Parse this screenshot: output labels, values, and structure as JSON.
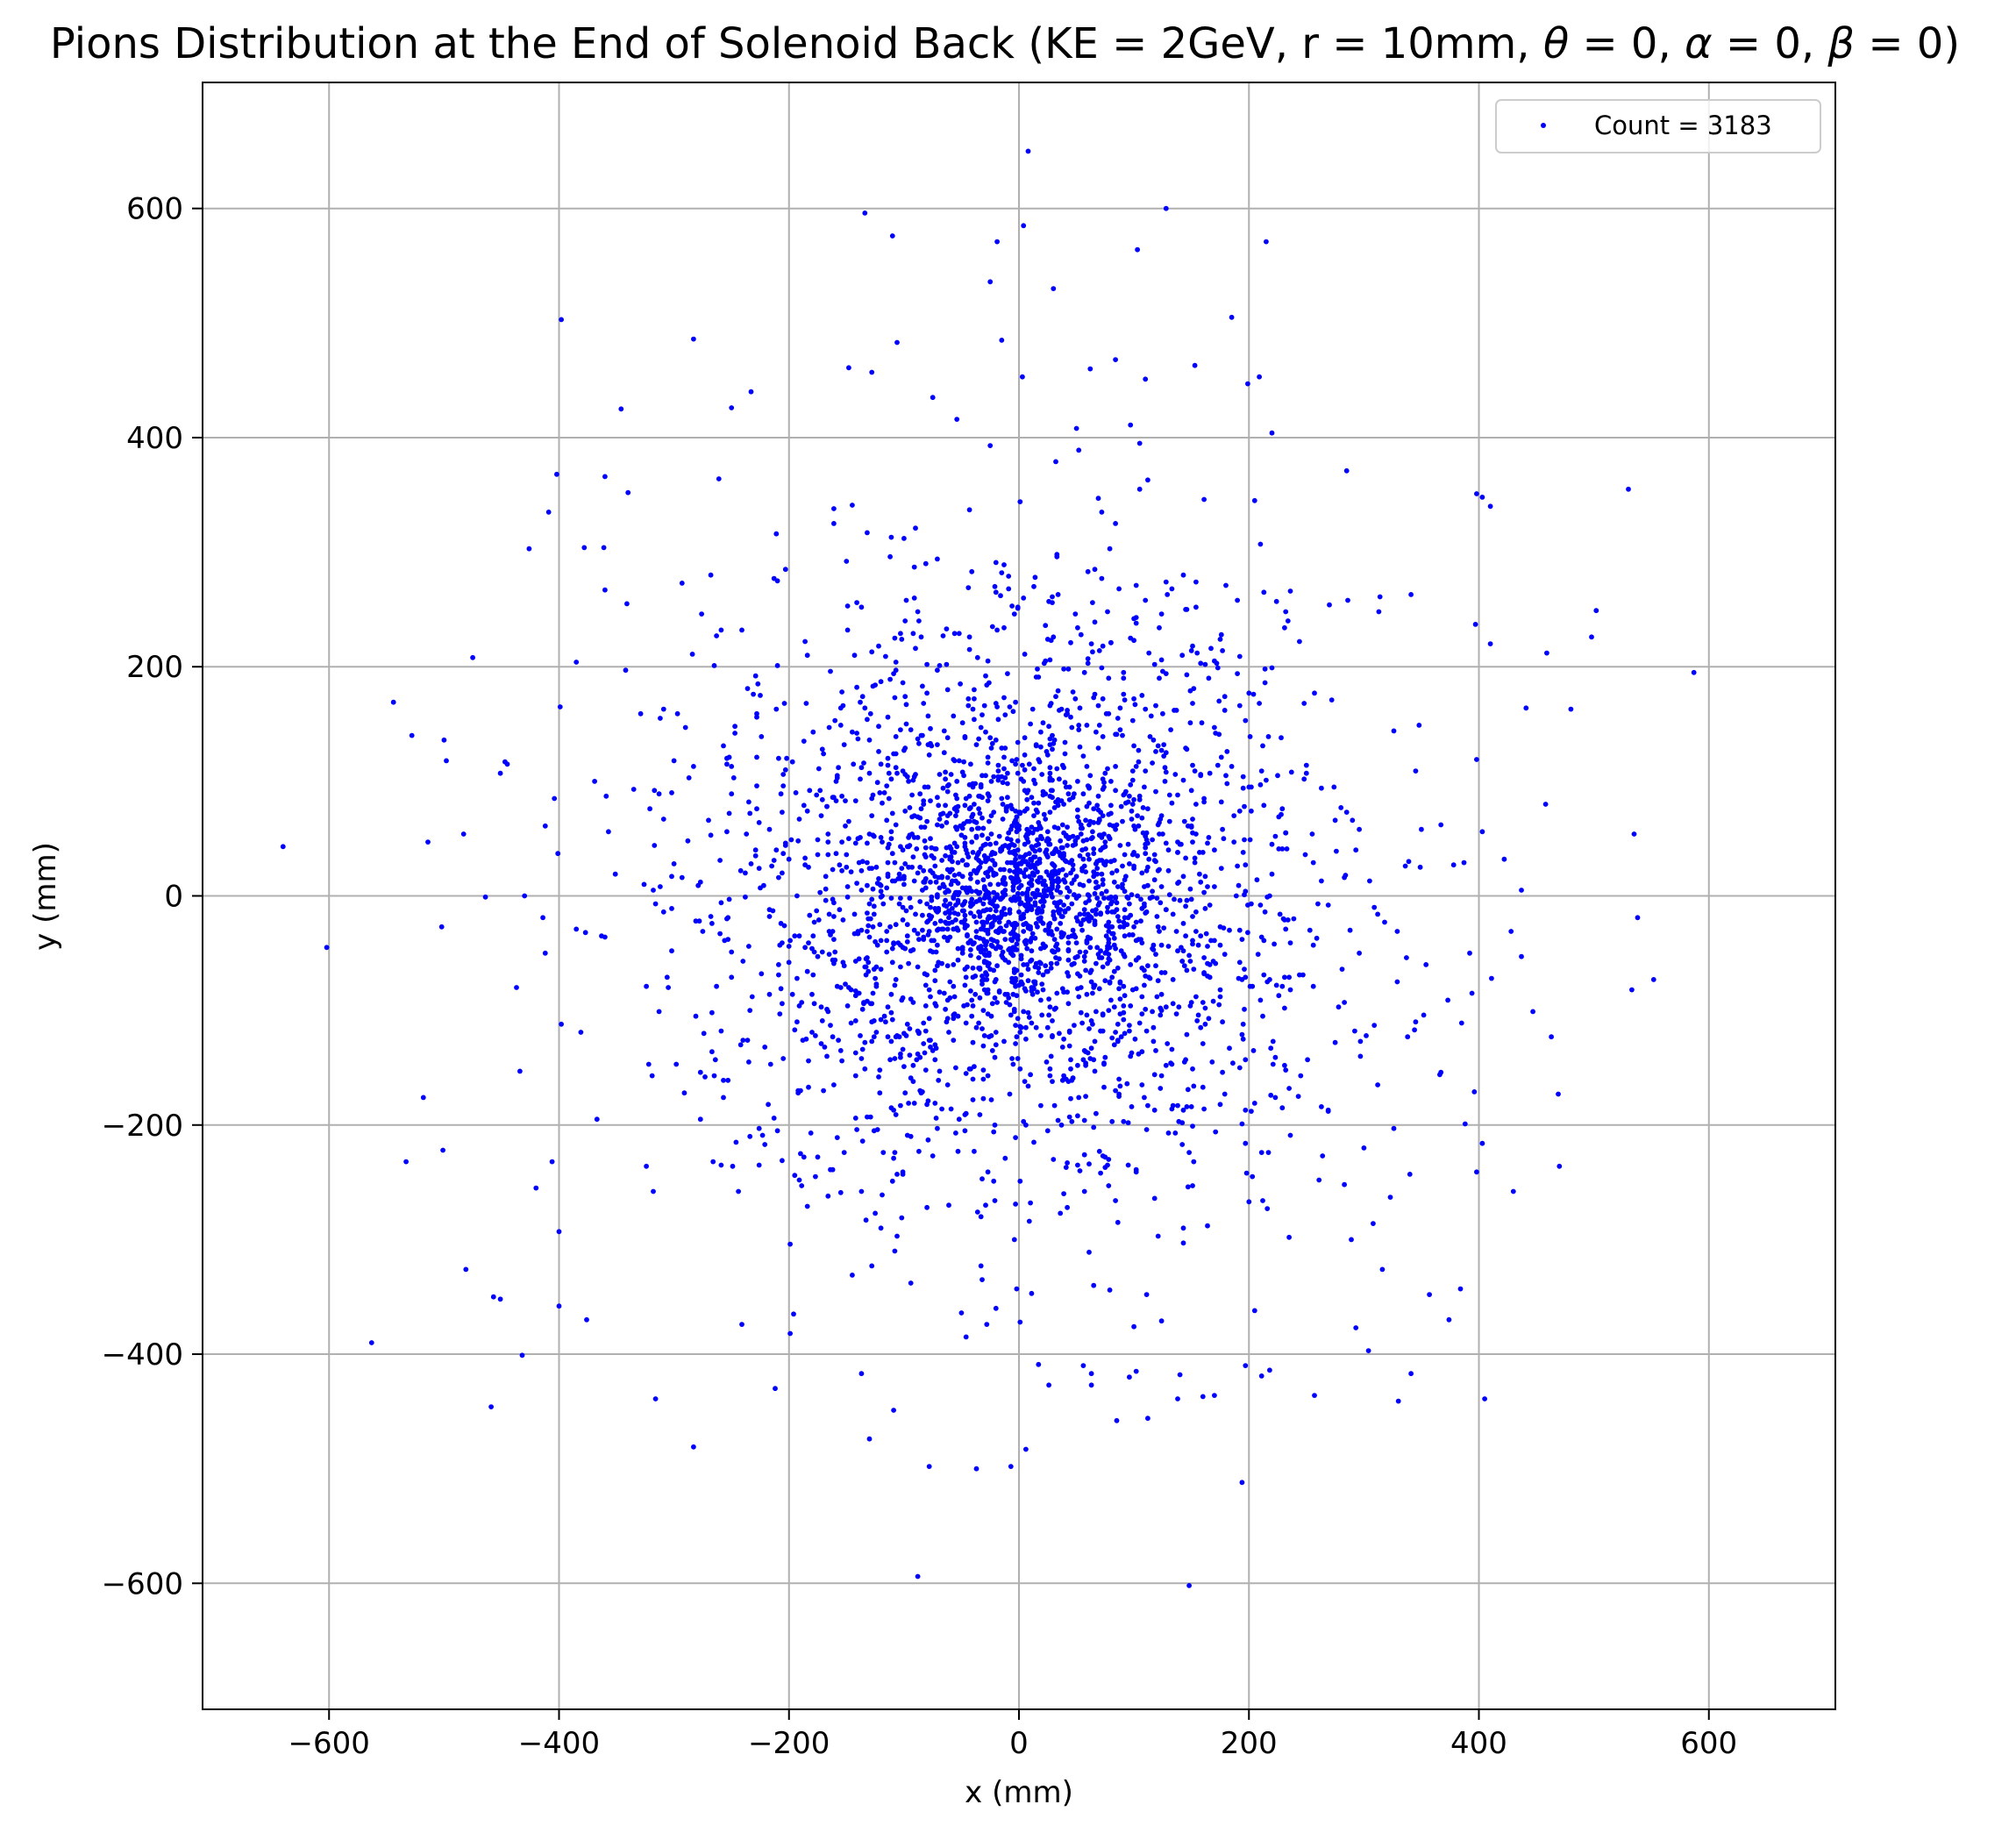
{
  "chart_data": {
    "type": "scatter",
    "title": "Pions Distribution at the End of Solenoid Back (KE = 2GeV, r = 10mm, θ = 0, α = 0, β = 0)",
    "title_parts": {
      "prefix": "Pions Distribution at the End of Solenoid Back (KE = 2GeV, r = 10mm, ",
      "theta": "θ",
      "alpha": "α",
      "beta": "β",
      "eq_zero": " = 0",
      "separator": ", ",
      "close": ")"
    },
    "xlabel": "x (mm)",
    "ylabel": "y (mm)",
    "xlim": [
      -710,
      710
    ],
    "ylim": [
      -710,
      710
    ],
    "xticks": [
      -600,
      -400,
      -200,
      0,
      200,
      400,
      600
    ],
    "yticks": [
      -600,
      -400,
      -200,
      0,
      200,
      400,
      600
    ],
    "xtick_labels": [
      "−600",
      "−400",
      "−200",
      "0",
      "200",
      "400",
      "600"
    ],
    "ytick_labels": [
      "−600",
      "−400",
      "−200",
      "0",
      "200",
      "400",
      "600"
    ],
    "grid": true,
    "legend": {
      "label": "Count = 3183",
      "position": "top-right"
    },
    "series_color": "#0000ff",
    "point_count": 3183,
    "outliers": [
      [
        8,
        650
      ],
      [
        -134,
        596
      ],
      [
        128,
        600
      ],
      [
        -110,
        576
      ],
      [
        4,
        585
      ],
      [
        215,
        571
      ],
      [
        -19,
        571
      ],
      [
        103,
        564
      ],
      [
        -25,
        536
      ],
      [
        30,
        530
      ],
      [
        -398,
        503
      ],
      [
        -283,
        486
      ],
      [
        185,
        505
      ],
      [
        -15,
        485
      ],
      [
        84,
        468
      ],
      [
        -148,
        461
      ],
      [
        153,
        463
      ],
      [
        209,
        453
      ],
      [
        110,
        451
      ],
      [
        199,
        447
      ],
      [
        -106,
        483
      ],
      [
        -233,
        440
      ],
      [
        -250,
        426
      ],
      [
        -346,
        425
      ],
      [
        -426,
        303
      ],
      [
        -409,
        335
      ],
      [
        -360,
        366
      ],
      [
        -378,
        304
      ],
      [
        -385,
        204
      ],
      [
        -544,
        169
      ],
      [
        -528,
        140
      ],
      [
        -500,
        136
      ],
      [
        -498,
        118
      ],
      [
        -640,
        43
      ],
      [
        -514,
        47
      ],
      [
        -602,
        -45
      ],
      [
        -563,
        -390
      ],
      [
        -533,
        -232
      ],
      [
        -518,
        -176
      ],
      [
        -501,
        -222
      ],
      [
        -481,
        -326
      ],
      [
        -459,
        -446
      ],
      [
        -457,
        -350
      ],
      [
        -451,
        -352
      ],
      [
        -432,
        -401
      ],
      [
        -420,
        -255
      ],
      [
        -400,
        -293
      ],
      [
        -400,
        -358
      ],
      [
        -376,
        -370
      ],
      [
        -283,
        -481
      ],
      [
        -316,
        -439
      ],
      [
        -212,
        -430
      ],
      [
        -196,
        -365
      ],
      [
        -130,
        -474
      ],
      [
        -88,
        -594
      ],
      [
        -78,
        -498
      ],
      [
        -37,
        -500
      ],
      [
        -7,
        -498
      ],
      [
        6,
        -483
      ],
      [
        148,
        -602
      ],
      [
        56,
        -410
      ],
      [
        102,
        -415
      ],
      [
        85,
        -458
      ],
      [
        112,
        -456
      ],
      [
        138,
        -439
      ],
      [
        160,
        -437
      ],
      [
        170,
        -436
      ],
      [
        211,
        -419
      ],
      [
        257,
        -436
      ],
      [
        304,
        -397
      ],
      [
        330,
        -441
      ],
      [
        341,
        -417
      ],
      [
        405,
        -439
      ],
      [
        357,
        -348
      ],
      [
        384,
        -343
      ],
      [
        430,
        -258
      ],
      [
        470,
        -236
      ],
      [
        398,
        -241
      ],
      [
        530,
        355
      ],
      [
        502,
        249
      ],
      [
        498,
        226
      ],
      [
        587,
        195
      ],
      [
        480,
        163
      ],
      [
        535,
        54
      ],
      [
        538,
        -19
      ],
      [
        552,
        -73
      ],
      [
        533,
        -82
      ],
      [
        463,
        -123
      ],
      [
        447,
        -101
      ],
      [
        437,
        -53
      ],
      [
        437,
        5
      ],
      [
        422,
        32
      ],
      [
        458,
        80
      ],
      [
        410,
        220
      ],
      [
        410,
        340
      ],
      [
        398,
        351
      ]
    ]
  }
}
